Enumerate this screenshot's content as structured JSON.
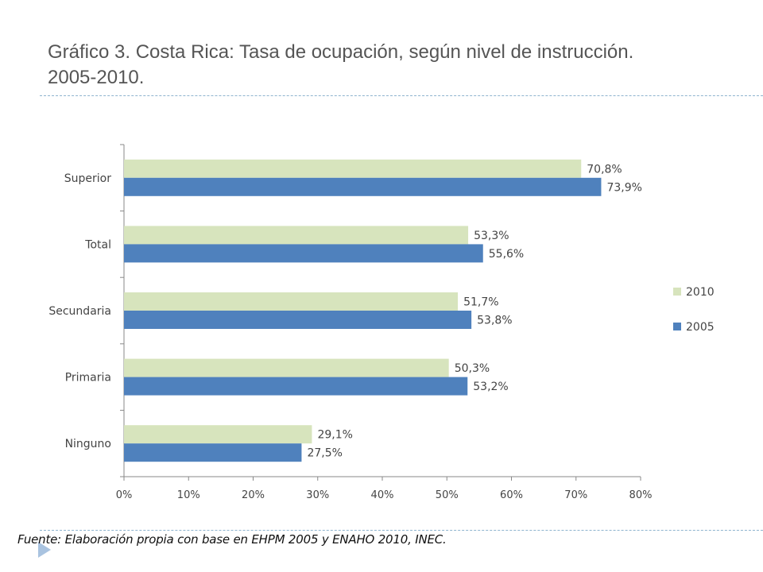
{
  "slide": {
    "title_line1": "Gráfico 3. Costa Rica: Tasa de ocupación, según nivel de instrucción.",
    "title_line2": "2005-2010.",
    "source": "Fuente: Elaboración propia con base en EHPM 2005 y ENAHO 2010, INEC."
  },
  "chart_data": {
    "type": "bar",
    "orientation": "horizontal",
    "categories": [
      "Superior",
      "Total",
      "Secundaria",
      "Primaria",
      "Ninguno"
    ],
    "series": [
      {
        "name": "2010",
        "color": "#d7e4bd",
        "values": [
          70.8,
          53.3,
          51.7,
          50.3,
          29.1
        ],
        "labels": [
          "70,8%",
          "53,3%",
          "51,7%",
          "50,3%",
          "29,1%"
        ]
      },
      {
        "name": "2005",
        "color": "#4f81bd",
        "values": [
          73.9,
          55.6,
          53.8,
          53.2,
          27.5
        ],
        "labels": [
          "73,9%",
          "55,6%",
          "53,8%",
          "53,2%",
          "27,5%"
        ]
      }
    ],
    "xlim": [
      0,
      80
    ],
    "xticks": [
      "0%",
      "10%",
      "20%",
      "30%",
      "40%",
      "50%",
      "60%",
      "70%",
      "80%"
    ],
    "grid": false,
    "legend_placement": "right"
  }
}
